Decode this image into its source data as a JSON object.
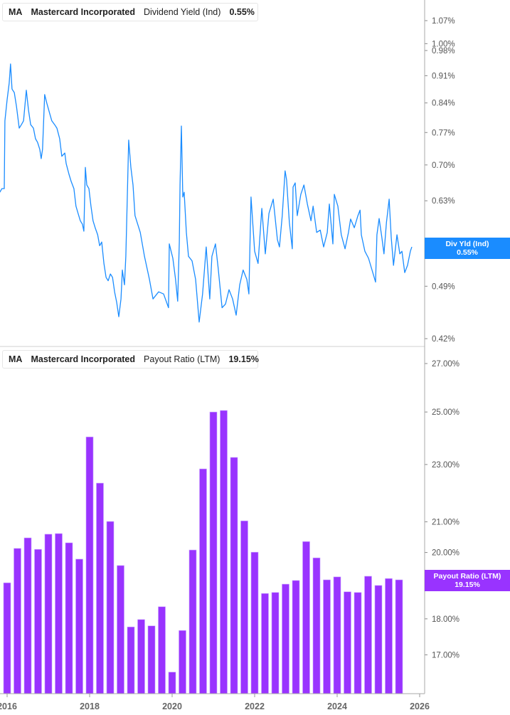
{
  "colors": {
    "yield": "#1a8cff",
    "payout": "#9933ff",
    "axis": "#aaaaaa"
  },
  "top_legend": {
    "ticker": "MA",
    "company": "Mastercard Incorporated",
    "metric": "Dividend Yield (Ind)",
    "value": "0.55%"
  },
  "bottom_legend": {
    "ticker": "MA",
    "company": "Mastercard Incorporated",
    "metric": "Payout Ratio (LTM)",
    "value": "19.15%"
  },
  "top_badge": {
    "label": "Div Yld (Ind)",
    "value": "0.55%"
  },
  "bottom_badge": {
    "label": "Payout Ratio (LTM)",
    "value": "19.15%"
  },
  "chart_data": [
    {
      "type": "line",
      "series": [
        {
          "name": "Dividend Yield (Ind)",
          "unit": "%"
        }
      ],
      "y_scale": "log",
      "ylim": [
        0.42,
        1.07
      ],
      "y_ticks": [
        "1.07%",
        "1.00%",
        "0.98%",
        "0.91%",
        "0.84%",
        "0.77%",
        "0.70%",
        "0.63%",
        "0.56%",
        "0.49%",
        "0.42%"
      ],
      "y_tick_values": [
        1.07,
        1.0,
        0.98,
        0.91,
        0.84,
        0.77,
        0.7,
        0.63,
        0.56,
        0.49,
        0.42
      ],
      "grid": false,
      "points": [
        [
          "2015-10-28",
          0.646
        ],
        [
          "2015-11-16",
          0.653
        ],
        [
          "2015-12-06",
          0.653
        ],
        [
          "2015-12-12",
          0.797
        ],
        [
          "2016-01-01",
          0.848
        ],
        [
          "2016-01-19",
          0.89
        ],
        [
          "2016-02-01",
          0.942
        ],
        [
          "2016-02-14",
          0.875
        ],
        [
          "2016-03-04",
          0.866
        ],
        [
          "2016-03-23",
          0.831
        ],
        [
          "2016-04-17",
          0.78
        ],
        [
          "2016-05-06",
          0.788
        ],
        [
          "2016-05-25",
          0.797
        ],
        [
          "2016-06-19",
          0.872
        ],
        [
          "2016-07-08",
          0.822
        ],
        [
          "2016-07-27",
          0.788
        ],
        [
          "2016-08-21",
          0.78
        ],
        [
          "2016-09-09",
          0.756
        ],
        [
          "2016-09-27",
          0.748
        ],
        [
          "2016-10-16",
          0.733
        ],
        [
          "2016-10-29",
          0.713
        ],
        [
          "2016-11-10",
          0.733
        ],
        [
          "2016-11-29",
          0.861
        ],
        [
          "2016-12-18",
          0.839
        ],
        [
          "2017-01-13",
          0.814
        ],
        [
          "2017-02-01",
          0.797
        ],
        [
          "2017-02-26",
          0.788
        ],
        [
          "2017-03-16",
          0.78
        ],
        [
          "2017-04-10",
          0.756
        ],
        [
          "2017-04-29",
          0.718
        ],
        [
          "2017-05-25",
          0.725
        ],
        [
          "2017-06-06",
          0.703
        ],
        [
          "2017-07-01",
          0.681
        ],
        [
          "2017-07-20",
          0.667
        ],
        [
          "2017-08-14",
          0.653
        ],
        [
          "2017-09-02",
          0.62
        ],
        [
          "2017-09-21",
          0.607
        ],
        [
          "2017-10-10",
          0.594
        ],
        [
          "2017-10-29",
          0.588
        ],
        [
          "2017-11-11",
          0.576
        ],
        [
          "2017-11-24",
          0.695
        ],
        [
          "2017-12-06",
          0.66
        ],
        [
          "2017-12-25",
          0.653
        ],
        [
          "2018-01-13",
          0.62
        ],
        [
          "2018-02-01",
          0.594
        ],
        [
          "2018-02-20",
          0.582
        ],
        [
          "2018-03-11",
          0.57
        ],
        [
          "2018-03-29",
          0.552
        ],
        [
          "2018-04-17",
          0.558
        ],
        [
          "2018-05-06",
          0.524
        ],
        [
          "2018-05-25",
          0.503
        ],
        [
          "2018-06-13",
          0.498
        ],
        [
          "2018-07-02",
          0.508
        ],
        [
          "2018-07-21",
          0.503
        ],
        [
          "2018-08-09",
          0.482
        ],
        [
          "2018-08-28",
          0.467
        ],
        [
          "2018-09-16",
          0.448
        ],
        [
          "2018-10-05",
          0.472
        ],
        [
          "2018-10-17",
          0.514
        ],
        [
          "2018-11-05",
          0.492
        ],
        [
          "2018-11-17",
          0.535
        ],
        [
          "2018-11-30",
          0.633
        ],
        [
          "2018-12-12",
          0.753
        ],
        [
          "2019-01-01",
          0.695
        ],
        [
          "2019-01-20",
          0.66
        ],
        [
          "2019-02-07",
          0.603
        ],
        [
          "2019-03-23",
          0.574
        ],
        [
          "2019-04-30",
          0.535
        ],
        [
          "2019-06-13",
          0.5
        ],
        [
          "2019-07-14",
          0.472
        ],
        [
          "2019-09-03",
          0.482
        ],
        [
          "2019-10-17",
          0.479
        ],
        [
          "2019-11-30",
          0.46
        ],
        [
          "2019-12-06",
          0.555
        ],
        [
          "2020-01-07",
          0.532
        ],
        [
          "2020-02-01",
          0.5
        ],
        [
          "2020-02-20",
          0.469
        ],
        [
          "2020-03-04",
          0.558
        ],
        [
          "2020-03-10",
          0.66
        ],
        [
          "2020-03-22",
          0.785
        ],
        [
          "2020-04-04",
          0.637
        ],
        [
          "2020-04-16",
          0.646
        ],
        [
          "2020-05-05",
          0.574
        ],
        [
          "2020-05-24",
          0.535
        ],
        [
          "2020-06-25",
          0.528
        ],
        [
          "2020-07-26",
          0.5
        ],
        [
          "2020-08-27",
          0.441
        ],
        [
          "2020-09-27",
          0.479
        ],
        [
          "2020-10-29",
          0.55
        ],
        [
          "2020-11-30",
          0.472
        ],
        [
          "2020-12-18",
          0.535
        ],
        [
          "2021-01-19",
          0.555
        ],
        [
          "2021-02-13",
          0.517
        ],
        [
          "2021-03-17",
          0.46
        ],
        [
          "2021-04-17",
          0.465
        ],
        [
          "2021-05-18",
          0.485
        ],
        [
          "2021-06-19",
          0.472
        ],
        [
          "2021-07-20",
          0.45
        ],
        [
          "2021-08-21",
          0.492
        ],
        [
          "2021-09-21",
          0.514
        ],
        [
          "2021-10-23",
          0.5
        ],
        [
          "2021-11-11",
          0.479
        ],
        [
          "2021-11-30",
          0.637
        ],
        [
          "2022-01-01",
          0.543
        ],
        [
          "2022-02-01",
          0.524
        ],
        [
          "2022-03-04",
          0.616
        ],
        [
          "2022-04-04",
          0.539
        ],
        [
          "2022-05-06",
          0.607
        ],
        [
          "2022-06-13",
          0.633
        ],
        [
          "2022-07-20",
          0.562
        ],
        [
          "2022-08-08",
          0.55
        ],
        [
          "2022-09-02",
          0.603
        ],
        [
          "2022-09-27",
          0.688
        ],
        [
          "2022-10-10",
          0.67
        ],
        [
          "2022-11-04",
          0.591
        ],
        [
          "2022-11-30",
          0.547
        ],
        [
          "2022-12-06",
          0.656
        ],
        [
          "2022-12-25",
          0.664
        ],
        [
          "2023-01-13",
          0.603
        ],
        [
          "2023-02-14",
          0.642
        ],
        [
          "2023-03-11",
          0.66
        ],
        [
          "2023-04-11",
          0.624
        ],
        [
          "2023-05-13",
          0.594
        ],
        [
          "2023-06-01",
          0.62
        ],
        [
          "2023-07-02",
          0.574
        ],
        [
          "2023-08-03",
          0.578
        ],
        [
          "2023-09-03",
          0.55
        ],
        [
          "2023-10-05",
          0.574
        ],
        [
          "2023-10-23",
          0.624
        ],
        [
          "2023-11-24",
          0.555
        ],
        [
          "2023-12-06",
          0.642
        ],
        [
          "2024-01-07",
          0.62
        ],
        [
          "2024-02-07",
          0.57
        ],
        [
          "2024-03-10",
          0.547
        ],
        [
          "2024-04-10",
          0.574
        ],
        [
          "2024-04-29",
          0.597
        ],
        [
          "2024-05-31",
          0.582
        ],
        [
          "2024-07-02",
          0.603
        ],
        [
          "2024-07-21",
          0.613
        ],
        [
          "2024-08-02",
          0.57
        ],
        [
          "2024-09-03",
          0.543
        ],
        [
          "2024-10-05",
          0.532
        ],
        [
          "2024-11-05",
          0.514
        ],
        [
          "2024-12-06",
          0.496
        ],
        [
          "2024-12-18",
          0.57
        ],
        [
          "2025-01-07",
          0.598
        ],
        [
          "2025-02-01",
          0.566
        ],
        [
          "2025-02-20",
          0.539
        ],
        [
          "2025-03-11",
          0.591
        ],
        [
          "2025-04-05",
          0.633
        ],
        [
          "2025-04-23",
          0.566
        ],
        [
          "2025-05-13",
          0.521
        ],
        [
          "2025-06-13",
          0.57
        ],
        [
          "2025-07-08",
          0.539
        ],
        [
          "2025-07-27",
          0.543
        ],
        [
          "2025-08-21",
          0.51
        ],
        [
          "2025-09-15",
          0.521
        ],
        [
          "2025-10-10",
          0.543
        ],
        [
          "2025-10-23",
          0.55
        ]
      ]
    },
    {
      "type": "bar",
      "series": [
        {
          "name": "Payout Ratio (LTM)",
          "unit": "%"
        }
      ],
      "y_scale": "log",
      "ylim": [
        16.0,
        27.0
      ],
      "y_ticks": [
        "27.00%",
        "25.00%",
        "23.00%",
        "21.00%",
        "20.00%",
        "19.00%",
        "18.00%",
        "17.00%"
      ],
      "y_tick_values": [
        27,
        25,
        23,
        21,
        20,
        19,
        18,
        17
      ],
      "grid": false,
      "categories": [
        "2015-12",
        "2016-03",
        "2016-06",
        "2016-09",
        "2016-12",
        "2017-03",
        "2017-06",
        "2017-09",
        "2017-12",
        "2018-03",
        "2018-06",
        "2018-09",
        "2018-12",
        "2019-03",
        "2019-06",
        "2019-09",
        "2019-12",
        "2020-03",
        "2020-06",
        "2020-09",
        "2020-12",
        "2021-03",
        "2021-06",
        "2021-09",
        "2021-12",
        "2022-03",
        "2022-06",
        "2022-09",
        "2022-12",
        "2023-03",
        "2023-06",
        "2023-09",
        "2023-12",
        "2024-03",
        "2024-06",
        "2024-09",
        "2024-12",
        "2025-03",
        "2025-06"
      ],
      "values": [
        19.06,
        20.13,
        20.47,
        20.1,
        20.59,
        20.61,
        20.31,
        19.79,
        24.03,
        22.33,
        21.01,
        19.59,
        17.77,
        17.98,
        17.8,
        18.35,
        16.54,
        17.67,
        20.08,
        22.84,
        25.0,
        25.06,
        23.26,
        21.03,
        20.01,
        18.74,
        18.77,
        19.02,
        19.13,
        20.35,
        19.83,
        19.15,
        19.24,
        18.79,
        18.77,
        19.26,
        18.98,
        19.19,
        19.15
      ]
    }
  ],
  "x_axis": {
    "ticks": [
      "2016",
      "2018",
      "2020",
      "2022",
      "2024",
      "2026"
    ],
    "tick_years": [
      2016,
      2018,
      2020,
      2022,
      2024,
      2026
    ]
  }
}
